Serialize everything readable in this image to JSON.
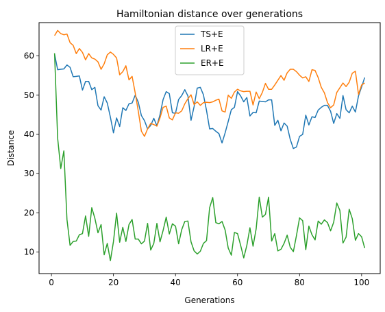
{
  "chart_data": {
    "type": "line",
    "title": "Hamiltonian distance over generations",
    "xlabel": "Generations",
    "ylabel": "Distance",
    "xlim": [
      -4,
      106
    ],
    "ylim": [
      4.5,
      68.5
    ],
    "xticks": [
      0,
      20,
      40,
      60,
      80,
      100
    ],
    "yticks": [
      10,
      20,
      30,
      40,
      50,
      60
    ],
    "grid": false,
    "legend_position": "top-center",
    "x": [
      1,
      2,
      3,
      4,
      5,
      6,
      7,
      8,
      9,
      10,
      11,
      12,
      13,
      14,
      15,
      16,
      17,
      18,
      19,
      20,
      21,
      22,
      23,
      24,
      25,
      26,
      27,
      28,
      29,
      30,
      31,
      32,
      33,
      34,
      35,
      36,
      37,
      38,
      39,
      40,
      41,
      42,
      43,
      44,
      45,
      46,
      47,
      48,
      49,
      50,
      51,
      52,
      53,
      54,
      55,
      56,
      57,
      58,
      59,
      60,
      61,
      62,
      63,
      64,
      65,
      66,
      67,
      68,
      69,
      70,
      71,
      72,
      73,
      74,
      75,
      76,
      77,
      78,
      79,
      80,
      81,
      82,
      83,
      84,
      85,
      86,
      87,
      88,
      89,
      90,
      91,
      92,
      93,
      94,
      95,
      96,
      97,
      98,
      99,
      100,
      101
    ],
    "series": [
      {
        "name": "TS+E",
        "color": "#1f77b4",
        "values": [
          60.5,
          56.5,
          56.6,
          56.7,
          57.7,
          57.1,
          54.7,
          54.8,
          54.9,
          51.3,
          53.5,
          53.5,
          51.4,
          52.0,
          47.3,
          46.2,
          49.6,
          48.0,
          44.4,
          40.4,
          44.2,
          42.0,
          46.8,
          46.1,
          47.8,
          48.0,
          50.0,
          48.2,
          44.8,
          43.5,
          41.4,
          42.3,
          44.1,
          42.2,
          45.0,
          48.9,
          50.9,
          50.4,
          45.5,
          45.4,
          48.9,
          49.9,
          51.4,
          49.8,
          43.6,
          47.1,
          51.8,
          52.0,
          50.1,
          46.1,
          41.4,
          41.5,
          40.8,
          40.2,
          37.8,
          40.4,
          43.3,
          46.3,
          46.9,
          50.9,
          49.8,
          48.3,
          49.4,
          44.7,
          45.6,
          45.5,
          48.5,
          48.4,
          48.3,
          48.8,
          48.8,
          42.3,
          43.6,
          40.9,
          42.9,
          42.1,
          38.7,
          36.4,
          36.8,
          39.5,
          40.0,
          44.9,
          42.4,
          44.5,
          44.3,
          46.2,
          46.9,
          47.4,
          47.4,
          45.9,
          42.8,
          45.3,
          44.1,
          49.9,
          46.3,
          45.5,
          47.2,
          45.7,
          49.8,
          52.1,
          54.5
        ]
      },
      {
        "name": "LR+E",
        "color": "#ff7f0e",
        "values": [
          65.2,
          66.5,
          65.7,
          65.4,
          65.6,
          63.4,
          62.7,
          60.6,
          61.9,
          60.9,
          59.0,
          60.6,
          59.5,
          59.2,
          58.5,
          56.6,
          58.0,
          60.3,
          61.0,
          60.4,
          59.5,
          55.2,
          56.0,
          57.5,
          53.9,
          54.8,
          50.6,
          45.9,
          40.8,
          39.5,
          41.4,
          42.8,
          42.5,
          42.1,
          44.2,
          46.9,
          47.2,
          44.2,
          43.7,
          45.5,
          45.4,
          46.0,
          47.8,
          49.1,
          50.1,
          47.6,
          48.3,
          47.4,
          48.1,
          48.2,
          48.1,
          48.3,
          48.7,
          49.0,
          46.0,
          45.7,
          50.0,
          49.2,
          50.8,
          51.5,
          51.1,
          50.9,
          51.0,
          51.0,
          47.5,
          50.8,
          49.1,
          50.7,
          53.0,
          51.5,
          51.5,
          52.6,
          53.8,
          55.0,
          53.8,
          55.7,
          56.6,
          56.6,
          56.0,
          55.1,
          54.4,
          54.7,
          53.5,
          56.5,
          56.3,
          54.5,
          52.0,
          50.6,
          48.1,
          46.8,
          47.5,
          50.7,
          51.9,
          53.1,
          52.2,
          53.3,
          55.6,
          56.1,
          50.2,
          52.6,
          53.1
        ]
      },
      {
        "name": "ER+E",
        "color": "#2ca02c",
        "values": [
          60.7,
          39.0,
          31.3,
          35.8,
          18.3,
          11.7,
          12.7,
          12.8,
          14.4,
          14.7,
          19.2,
          14.0,
          21.3,
          18.6,
          14.9,
          17.0,
          9.3,
          12.2,
          7.8,
          12.7,
          19.9,
          12.5,
          16.3,
          12.7,
          17.0,
          18.3,
          13.3,
          13.3,
          12.1,
          12.8,
          17.3,
          10.5,
          12.2,
          17.3,
          12.6,
          15.5,
          18.9,
          14.6,
          17.2,
          16.6,
          12.1,
          15.7,
          17.8,
          17.9,
          12.6,
          10.3,
          9.5,
          10.2,
          12.2,
          12.9,
          21.3,
          23.9,
          17.5,
          17.2,
          17.8,
          15.6,
          11.0,
          9.2,
          15.0,
          14.7,
          11.7,
          8.5,
          11.7,
          16.2,
          11.5,
          15.9,
          24.0,
          18.9,
          19.6,
          24.0,
          12.8,
          14.7,
          10.3,
          10.7,
          12.2,
          14.3,
          11.2,
          10.1,
          14.2,
          18.7,
          18.0,
          10.6,
          16.6,
          14.4,
          13.1,
          17.9,
          17.1,
          18.2,
          17.5,
          15.4,
          17.6,
          22.5,
          20.6,
          12.3,
          13.8,
          20.9,
          18.5,
          13.0,
          14.7,
          13.9,
          11.0
        ]
      }
    ]
  }
}
